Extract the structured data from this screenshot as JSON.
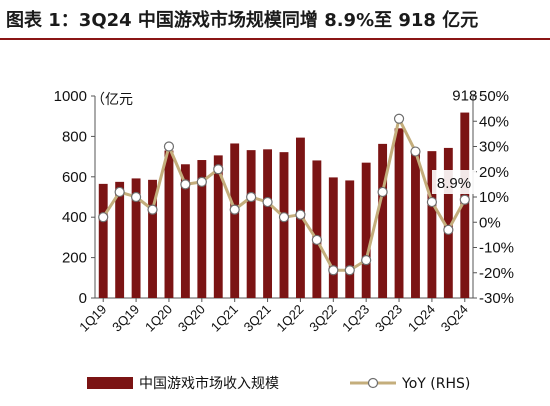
{
  "title": "图表 1：3Q24 中国游戏市场规模同增 8.9%至 918 亿元",
  "colors": {
    "bar": "#7b1414",
    "line": "#c4ae7c",
    "marker_fill": "#ffffff",
    "title_rule": "#8a1515"
  },
  "chart_data": {
    "type": "bar",
    "categories": [
      "1Q19",
      "2Q19",
      "3Q19",
      "4Q19",
      "1Q20",
      "2Q20",
      "3Q20",
      "4Q20",
      "1Q21",
      "2Q21",
      "3Q21",
      "4Q21",
      "1Q22",
      "2Q22",
      "3Q22",
      "4Q22",
      "1Q23",
      "2Q23",
      "3Q23",
      "4Q23",
      "1Q24",
      "2Q24",
      "3Q24"
    ],
    "tick_labels": [
      "1Q19",
      "3Q19",
      "1Q20",
      "3Q20",
      "1Q21",
      "3Q21",
      "1Q22",
      "3Q22",
      "1Q23",
      "3Q23",
      "1Q24",
      "3Q24"
    ],
    "series": [
      {
        "name": "中国游戏市场收入规模",
        "type": "bar",
        "axis": "left",
        "values": [
          565,
          575,
          592,
          585,
          730,
          662,
          683,
          706,
          765,
          732,
          736,
          722,
          794,
          681,
          597,
          582,
          670,
          763,
          840,
          720,
          727,
          743,
          918
        ]
      },
      {
        "name": "YoY (RHS)",
        "type": "line",
        "axis": "right",
        "values": [
          0.02,
          0.12,
          0.1,
          0.05,
          0.3,
          0.15,
          0.16,
          0.21,
          0.05,
          0.1,
          0.08,
          0.02,
          0.03,
          -0.07,
          -0.19,
          -0.19,
          -0.15,
          0.12,
          0.41,
          0.28,
          0.08,
          -0.03,
          0.089
        ]
      }
    ],
    "y_left": {
      "unit": "（亿元",
      "ylim": [
        0,
        1000
      ],
      "ticks": [
        0,
        200,
        400,
        600,
        800,
        1000
      ]
    },
    "y_right": {
      "ylim": [
        -0.3,
        0.5
      ],
      "ticks": [
        -0.3,
        -0.2,
        -0.1,
        0.0,
        0.1,
        0.2,
        0.3,
        0.4,
        0.5
      ],
      "tick_labels": [
        "-30%",
        "-20%",
        "-10%",
        "0%",
        "10%",
        "20%",
        "30%",
        "40%",
        "50%"
      ]
    },
    "annotations": [
      {
        "text": "918",
        "category": "3Q24",
        "series": "bar"
      },
      {
        "text": "8.9%",
        "category": "3Q24",
        "series": "line"
      }
    ],
    "grid": false,
    "legend": "bottom"
  }
}
